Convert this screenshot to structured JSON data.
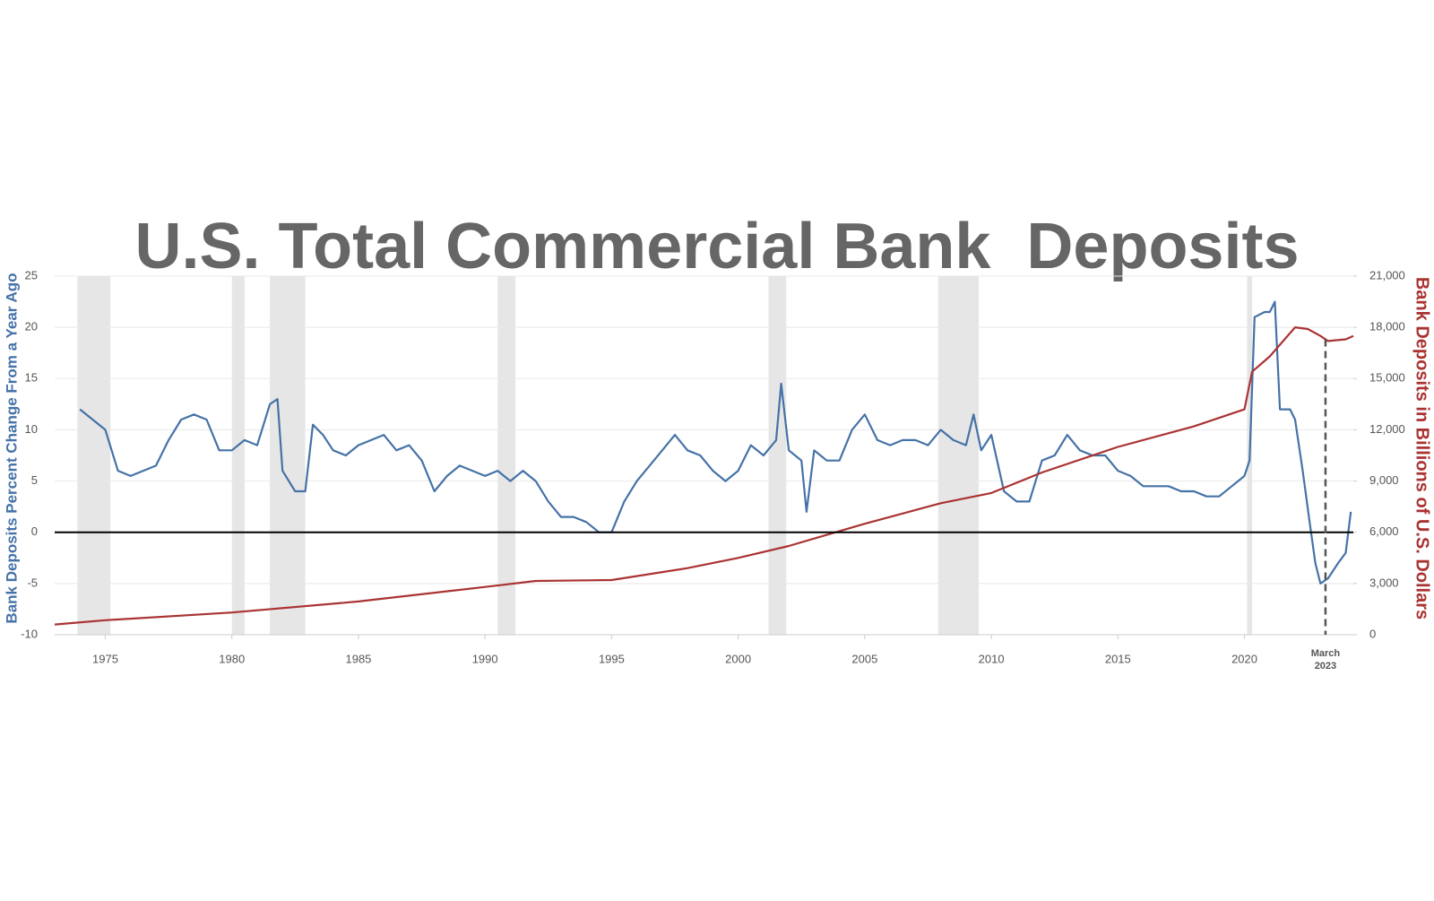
{
  "chart_data": {
    "type": "line",
    "title": "U.S. Total Commercial Bank  Deposits",
    "y_label": "Bank Deposits Percent Change From a Year Ago",
    "y2_label": "Bank Deposits in Billions of U.S. Dollars",
    "xlim": [
      1973,
      2024.3
    ],
    "xticks": [
      1975,
      1980,
      1985,
      1990,
      1995,
      2000,
      2005,
      2010,
      2015,
      2020
    ],
    "ylim": [
      -10,
      25
    ],
    "yticks": [
      -10,
      -5,
      0,
      5,
      10,
      15,
      20,
      25
    ],
    "y2lim": [
      0,
      21000
    ],
    "y2ticks": [
      0,
      {
        "value": 3000,
        "label": "3,000"
      },
      {
        "value": 6000,
        "label": "6,000"
      },
      {
        "value": 9000,
        "label": "9,000"
      },
      {
        "value": 12000,
        "label": "12,000"
      },
      {
        "value": 15000,
        "label": "15,000"
      },
      {
        "value": 18000,
        "label": "18,000"
      },
      {
        "value": 21000,
        "label": "21,000"
      }
    ],
    "grid": true,
    "hline": 0,
    "recessions": [
      {
        "start": 1973.9,
        "end": 1975.2
      },
      {
        "start": 1980.0,
        "end": 1980.5
      },
      {
        "start": 1981.5,
        "end": 1982.9
      },
      {
        "start": 1990.5,
        "end": 1991.2
      },
      {
        "start": 2001.2,
        "end": 2001.9
      },
      {
        "start": 2007.9,
        "end": 2009.5
      },
      {
        "start": 2020.1,
        "end": 2020.3
      }
    ],
    "annotation": {
      "x": 2023.2,
      "label": "March",
      "sublabel": "2023"
    },
    "series": [
      {
        "name": "Bank Deposits Percent Change From a Year Ago",
        "color": "#4572a7",
        "x": [
          1974,
          1974.5,
          1975,
          1975.5,
          1976,
          1976.5,
          1977,
          1977.5,
          1978,
          1978.5,
          1979,
          1979.5,
          1980,
          1980.5,
          1981,
          1981.5,
          1981.8,
          1982,
          1982.5,
          1982.9,
          1983.2,
          1983.6,
          1984,
          1984.5,
          1985,
          1985.5,
          1986,
          1986.5,
          1987,
          1987.5,
          1988,
          1988.5,
          1989,
          1989.5,
          1990,
          1990.5,
          1991,
          1991.5,
          1992,
          1992.5,
          1993,
          1993.5,
          1994,
          1994.5,
          1995,
          1995.5,
          1996,
          1996.5,
          1997,
          1997.5,
          1998,
          1998.5,
          1999,
          1999.5,
          2000,
          2000.5,
          2001,
          2001.5,
          2001.7,
          2002,
          2002.5,
          2002.7,
          2003,
          2003.5,
          2004,
          2004.5,
          2005,
          2005.5,
          2006,
          2006.5,
          2007,
          2007.5,
          2008,
          2008.5,
          2009,
          2009.3,
          2009.6,
          2010,
          2010.5,
          2011,
          2011.5,
          2012,
          2012.5,
          2013,
          2013.5,
          2014,
          2014.5,
          2015,
          2015.5,
          2016,
          2016.5,
          2017,
          2017.5,
          2018,
          2018.5,
          2019,
          2019.5,
          2020,
          2020.2,
          2020.4,
          2020.8,
          2021,
          2021.2,
          2021.4,
          2021.8,
          2022,
          2022.3,
          2022.6,
          2022.8,
          2023,
          2023.3,
          2023.7,
          2024,
          2024.2
        ],
        "values": [
          12,
          11,
          10,
          6,
          5.5,
          6,
          6.5,
          9,
          11,
          11.5,
          11,
          8,
          8,
          9,
          8.5,
          12.5,
          13,
          6,
          4,
          4,
          10.5,
          9.5,
          8,
          7.5,
          8.5,
          9,
          9.5,
          8,
          8.5,
          7,
          4,
          5.5,
          6.5,
          6,
          5.5,
          6,
          5,
          6,
          5,
          3,
          1.5,
          1.5,
          1,
          0,
          0,
          3,
          5,
          6.5,
          8,
          9.5,
          8,
          7.5,
          6,
          5,
          6,
          8.5,
          7.5,
          9,
          14.5,
          8,
          7,
          2,
          8,
          7,
          7,
          10,
          11.5,
          9,
          8.5,
          9,
          9,
          8.5,
          10,
          9,
          8.5,
          11.5,
          8,
          9.5,
          4,
          3,
          3,
          7,
          7.5,
          9.5,
          8,
          7.5,
          7.5,
          6,
          5.5,
          4.5,
          4.5,
          4.5,
          4,
          4,
          3.5,
          3.5,
          4.5,
          5.5,
          7,
          21,
          21.5,
          21.5,
          22.5,
          12,
          12,
          11,
          6,
          0.5,
          -3,
          -5,
          -4.5,
          -3,
          -2,
          2
        ]
      },
      {
        "name": "Bank Deposits in Billions of U.S. Dollars",
        "color": "#aa3333",
        "axis": "y2",
        "x": [
          1973,
          1975,
          1980,
          1985,
          1990,
          1992,
          1995,
          1998,
          2000,
          2002,
          2005,
          2008,
          2010,
          2012,
          2015,
          2018,
          2020,
          2020.3,
          2021,
          2022,
          2022.5,
          2023,
          2023.3,
          2024,
          2024.3
        ],
        "values": [
          600,
          850,
          1300,
          1950,
          2800,
          3150,
          3200,
          3900,
          4500,
          5200,
          6500,
          7700,
          8300,
          9500,
          11000,
          12200,
          13200,
          15400,
          16300,
          18000,
          17900,
          17500,
          17200,
          17300,
          17500
        ]
      }
    ]
  }
}
